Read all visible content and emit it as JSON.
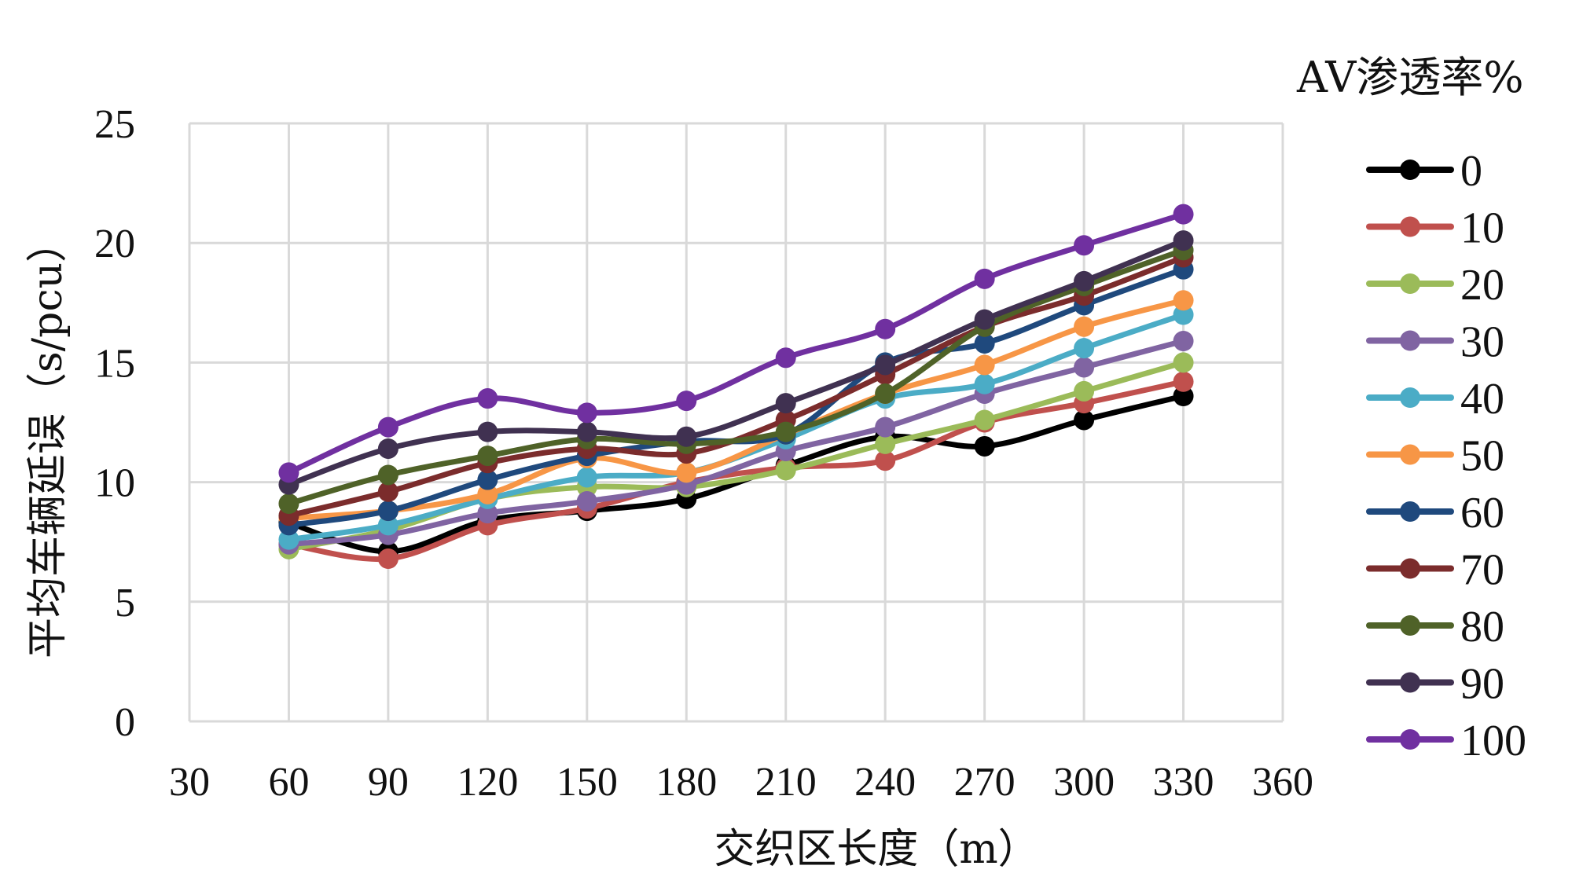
{
  "chart_data": {
    "type": "line",
    "title": "",
    "xlabel": "交织区长度（m）",
    "ylabel": "平均车辆延误（s/pcu）",
    "xlim": [
      30,
      360
    ],
    "ylim": [
      0,
      25
    ],
    "xticks": [
      30,
      60,
      90,
      120,
      150,
      180,
      210,
      240,
      270,
      300,
      330,
      360
    ],
    "yticks": [
      0,
      5,
      10,
      15,
      20,
      25
    ],
    "grid": true,
    "smooth": true,
    "legend_title": "AV渗透率%",
    "legend_position": "right",
    "x": [
      60,
      90,
      120,
      150,
      180,
      210,
      240,
      270,
      300,
      330
    ],
    "series": [
      {
        "name": "0",
        "color": "#000000",
        "values": [
          8.3,
          7.1,
          8.4,
          8.8,
          9.3,
          10.7,
          11.9,
          11.5,
          12.6,
          13.6
        ]
      },
      {
        "name": "10",
        "color": "#c0504d",
        "values": [
          7.4,
          6.8,
          8.2,
          8.9,
          10.0,
          10.6,
          10.9,
          12.5,
          13.3,
          14.2
        ]
      },
      {
        "name": "20",
        "color": "#9bbb59",
        "values": [
          7.2,
          8.0,
          9.3,
          9.8,
          9.8,
          10.5,
          11.6,
          12.6,
          13.8,
          15.0
        ]
      },
      {
        "name": "30",
        "color": "#8064a2",
        "values": [
          7.4,
          7.8,
          8.7,
          9.2,
          9.9,
          11.3,
          12.3,
          13.7,
          14.8,
          15.9
        ]
      },
      {
        "name": "40",
        "color": "#4bacc6",
        "values": [
          7.6,
          8.2,
          9.3,
          10.2,
          10.4,
          11.8,
          13.5,
          14.1,
          15.6,
          17.0
        ]
      },
      {
        "name": "50",
        "color": "#f79646",
        "values": [
          8.5,
          8.8,
          9.5,
          11.0,
          10.4,
          12.0,
          13.7,
          14.9,
          16.5,
          17.6
        ]
      },
      {
        "name": "60",
        "color": "#1f497d",
        "values": [
          8.2,
          8.8,
          10.1,
          11.1,
          11.7,
          12.0,
          15.0,
          15.8,
          17.4,
          18.9
        ]
      },
      {
        "name": "70",
        "color": "#7b2c2c",
        "values": [
          8.6,
          9.6,
          10.8,
          11.4,
          11.2,
          12.6,
          14.5,
          16.5,
          17.8,
          19.4
        ]
      },
      {
        "name": "80",
        "color": "#4f6228",
        "values": [
          9.1,
          10.3,
          11.1,
          11.8,
          11.6,
          12.1,
          13.7,
          16.5,
          18.2,
          19.7
        ]
      },
      {
        "name": "90",
        "color": "#403151",
        "values": [
          9.9,
          11.4,
          12.1,
          12.1,
          11.9,
          13.3,
          14.9,
          16.8,
          18.4,
          20.1
        ]
      },
      {
        "name": "100",
        "color": "#7030a0",
        "values": [
          10.4,
          12.3,
          13.5,
          12.9,
          13.4,
          15.2,
          16.4,
          18.5,
          19.9,
          21.2
        ]
      }
    ]
  }
}
